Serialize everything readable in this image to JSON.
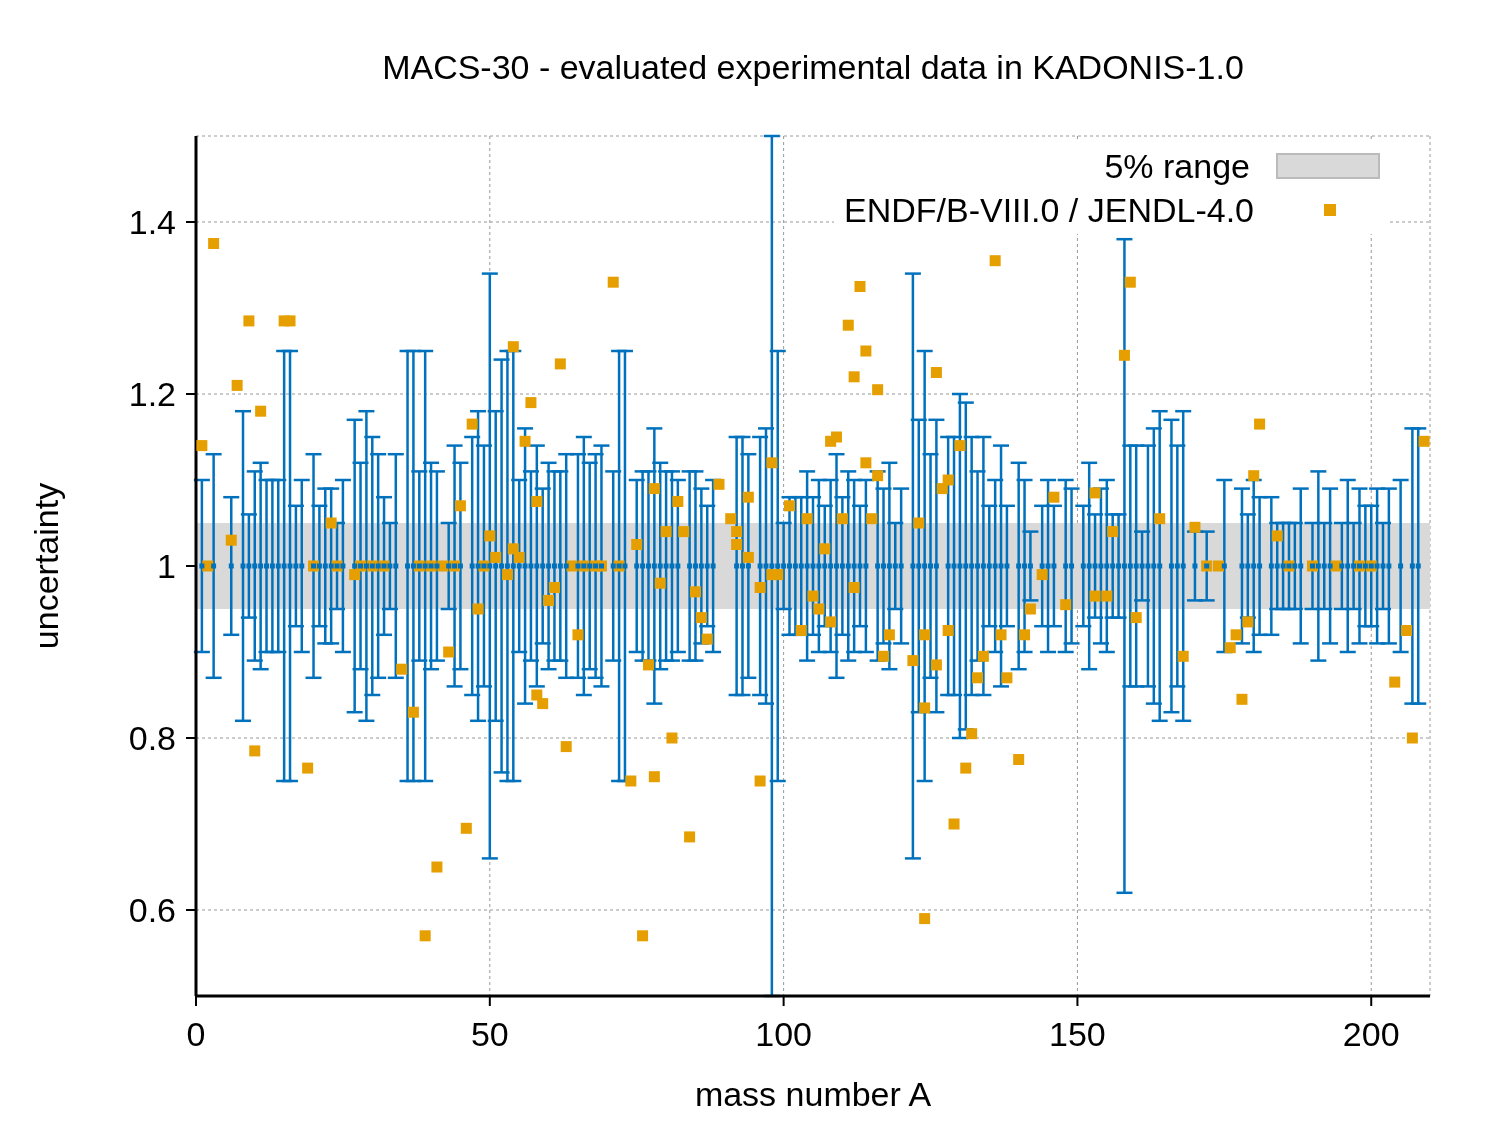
{
  "chart_data": {
    "type": "scatter",
    "title": "MACS-30 - evaluated experimental data in KADONIS-1.0",
    "xlabel": "mass number A",
    "ylabel": "uncertainty",
    "xlim": [
      0,
      210
    ],
    "xticks": [
      0,
      50,
      100,
      150,
      200
    ],
    "ylim": [
      0.5,
      1.5
    ],
    "yticks": [
      0.6,
      0.8,
      1,
      1.2,
      1.4
    ],
    "grid": true,
    "legend": "top right",
    "marker": "square",
    "bands": [
      {
        "axis": "y",
        "from": 0.95,
        "to": 1.05,
        "label": "5% range",
        "color": "#d9d9d9"
      }
    ],
    "series": [
      {
        "color": "#0072bd",
        "x": [
          1,
          3,
          6,
          8,
          9,
          10,
          11,
          12,
          13,
          14,
          15,
          16,
          17,
          18,
          20,
          21,
          22,
          23,
          24,
          25,
          27,
          28,
          29,
          30,
          31,
          32,
          33,
          34,
          36,
          37,
          38,
          39,
          40,
          41,
          43,
          44,
          45,
          47,
          48,
          49,
          50,
          51,
          52,
          53,
          54,
          55,
          56,
          57,
          58,
          59,
          60,
          61,
          62,
          63,
          65,
          66,
          67,
          68,
          69,
          71,
          72,
          73,
          75,
          76,
          77,
          78,
          79,
          80,
          81,
          82,
          84,
          85,
          86,
          87,
          88,
          92,
          93,
          94,
          96,
          97,
          98,
          99,
          100,
          101,
          102,
          103,
          104,
          105,
          106,
          107,
          108,
          109,
          110,
          111,
          112,
          113,
          114,
          116,
          117,
          118,
          119,
          120,
          122,
          123,
          124,
          125,
          126,
          128,
          129,
          130,
          131,
          132,
          133,
          134,
          135,
          136,
          137,
          138,
          140,
          141,
          142,
          144,
          145,
          146,
          148,
          149,
          151,
          152,
          153,
          154,
          155,
          156,
          157,
          158,
          159,
          160,
          161,
          162,
          163,
          164,
          166,
          167,
          168,
          170,
          172,
          175,
          178,
          179,
          180,
          181,
          183,
          184,
          185,
          186,
          187,
          188,
          190,
          191,
          192,
          193,
          195,
          196,
          197,
          198,
          199,
          200,
          201,
          202,
          203,
          205,
          207,
          208
        ],
        "values": [
          1,
          1,
          1,
          1,
          1,
          1,
          1,
          1,
          1,
          1,
          1,
          1,
          1,
          1,
          1,
          1,
          1,
          1,
          1,
          1,
          1,
          1,
          1,
          1,
          1,
          1,
          1,
          1,
          1,
          1,
          1,
          1,
          1,
          1,
          1,
          1,
          1,
          1,
          1,
          1,
          1,
          1,
          1,
          1,
          1,
          1,
          1,
          1,
          1,
          1,
          1,
          1,
          1,
          1,
          1,
          1,
          1,
          1,
          1,
          1,
          1,
          1,
          1,
          1,
          1,
          1,
          1,
          1,
          1,
          1,
          1,
          1,
          1,
          1,
          1,
          1,
          1,
          1,
          1,
          1,
          1,
          1,
          1,
          1,
          1,
          1,
          1,
          1,
          1,
          1,
          1,
          1,
          1,
          1,
          1,
          1,
          1,
          1,
          1,
          1,
          1,
          1,
          1,
          1,
          1,
          1,
          1,
          1,
          1,
          1,
          1,
          1,
          1,
          1,
          1,
          1,
          1,
          1,
          1,
          1,
          1,
          1,
          1,
          1,
          1,
          1,
          1,
          1,
          1,
          1,
          1,
          1,
          1,
          1,
          1,
          1,
          1,
          1,
          1,
          1,
          1,
          1,
          1,
          1,
          1,
          1,
          1,
          1,
          1,
          1,
          1,
          1,
          1,
          1,
          1,
          1,
          1,
          1,
          1,
          1,
          1,
          1,
          1,
          1,
          1,
          1,
          1,
          1,
          1,
          1,
          1,
          1
        ],
        "errors": [
          0.1,
          0.13,
          0.08,
          0.18,
          0.06,
          0.11,
          0.12,
          0.1,
          0.1,
          0.1,
          0.25,
          0.25,
          0.07,
          0.1,
          0.13,
          0.07,
          0.09,
          0.09,
          0.05,
          0.1,
          0.17,
          0.12,
          0.18,
          0.15,
          0.13,
          0.08,
          0.05,
          0.13,
          0.25,
          0.25,
          0.11,
          0.25,
          0.12,
          0.11,
          0.05,
          0.14,
          0.12,
          0.15,
          0.18,
          0.14,
          0.34,
          0.18,
          0.24,
          0.25,
          0.25,
          0.1,
          0.16,
          0.11,
          0.14,
          0.09,
          0.12,
          0.11,
          0.11,
          0.13,
          0.13,
          0.15,
          0.12,
          0.13,
          0.14,
          0.11,
          0.25,
          0.25,
          0.1,
          0.11,
          0.11,
          0.16,
          0.12,
          0.11,
          0.11,
          0.1,
          0.11,
          0.11,
          0.09,
          0.07,
          0.1,
          0.15,
          0.15,
          0.13,
          0.15,
          0.16,
          0.5,
          0.25,
          0.05,
          0.08,
          0.08,
          0.08,
          0.11,
          0.08,
          0.1,
          0.07,
          0.1,
          0.13,
          0.08,
          0.11,
          0.1,
          0.07,
          0.1,
          0.11,
          0.09,
          0.12,
          0.05,
          0.09,
          0.34,
          0.17,
          0.25,
          0.13,
          0.17,
          0.15,
          0.15,
          0.2,
          0.19,
          0.15,
          0.11,
          0.15,
          0.07,
          0.1,
          0.14,
          0.07,
          0.12,
          0.1,
          0.04,
          0.07,
          0.1,
          0.07,
          0.1,
          0.09,
          0.07,
          0.12,
          0.06,
          0.09,
          0.1,
          0.06,
          0.06,
          0.38,
          0.14,
          0.14,
          0.04,
          0.14,
          0.16,
          0.18,
          0.17,
          0.14,
          0.18,
          0.04,
          0.04,
          0.1,
          0.09,
          0.06,
          0.1,
          0.08,
          0.08,
          0.05,
          0.05,
          0.05,
          0.05,
          0.09,
          0.05,
          0.11,
          0.05,
          0.09,
          0.05,
          0.1,
          0.05,
          0.09,
          0.07,
          0.07,
          0.09,
          0.05,
          0.09,
          0.1,
          0.16,
          0.16
        ]
      },
      {
        "name": "ENDF/B-VIII.0 / JENDL-4.0",
        "color": "#e69f00",
        "x": [
          1,
          2,
          3,
          6,
          7,
          9,
          10,
          11,
          15,
          16,
          19,
          20,
          23,
          24,
          27,
          28,
          30,
          32,
          35,
          37,
          38,
          39,
          40,
          41,
          42,
          43,
          44,
          45,
          46,
          47,
          48,
          49,
          50,
          51,
          53,
          54,
          54,
          55,
          56,
          57,
          58,
          58,
          59,
          60,
          61,
          62,
          63,
          64,
          65,
          66,
          68,
          69,
          71,
          72,
          74,
          75,
          76,
          77,
          78,
          78,
          79,
          80,
          81,
          82,
          83,
          84,
          85,
          86,
          87,
          89,
          91,
          92,
          92,
          94,
          94,
          96,
          96,
          98,
          98,
          99,
          101,
          103,
          104,
          105,
          106,
          107,
          108,
          108,
          109,
          110,
          111,
          112,
          112,
          113,
          114,
          114,
          115,
          116,
          116,
          117,
          118,
          122,
          123,
          124,
          124,
          124,
          126,
          126,
          127,
          128,
          128,
          129,
          130,
          131,
          132,
          133,
          134,
          136,
          137,
          138,
          140,
          141,
          142,
          144,
          146,
          148,
          153,
          153,
          155,
          156,
          158,
          159,
          160,
          164,
          168,
          170,
          172,
          174,
          176,
          177,
          178,
          179,
          180,
          181,
          184,
          186,
          190,
          194,
          198,
          200,
          204,
          206,
          207,
          209
        ],
        "values": [
          1.14,
          1.0,
          1.375,
          1.03,
          1.21,
          1.285,
          0.785,
          1.18,
          1.285,
          1.285,
          0.765,
          1.0,
          1.05,
          1.0,
          0.99,
          1.0,
          1.0,
          1.0,
          0.88,
          0.83,
          1.0,
          0.57,
          1.0,
          0.65,
          1.0,
          0.9,
          1.0,
          1.07,
          0.695,
          1.165,
          0.95,
          1.0,
          1.035,
          1.01,
          0.99,
          1.255,
          1.02,
          1.01,
          1.145,
          1.19,
          1.075,
          0.85,
          0.84,
          0.96,
          0.975,
          1.235,
          0.79,
          1.0,
          0.92,
          1.0,
          1.0,
          1.0,
          1.33,
          1.0,
          0.75,
          1.025,
          0.57,
          0.885,
          1.09,
          0.755,
          0.98,
          1.04,
          0.8,
          1.075,
          1.04,
          0.685,
          0.97,
          0.94,
          0.915,
          1.095,
          1.055,
          1.04,
          1.025,
          1.01,
          1.08,
          0.75,
          0.975,
          1.12,
          0.99,
          0.99,
          1.07,
          0.925,
          1.055,
          0.965,
          0.95,
          1.02,
          0.935,
          1.145,
          1.15,
          1.055,
          1.28,
          1.22,
          0.975,
          1.325,
          1.25,
          1.12,
          1.055,
          1.105,
          1.205,
          0.895,
          0.92,
          0.89,
          1.05,
          0.835,
          0.59,
          0.92,
          1.225,
          0.885,
          1.09,
          1.1,
          0.925,
          0.7,
          1.14,
          0.765,
          0.805,
          0.87,
          0.895,
          1.355,
          0.92,
          0.87,
          0.775,
          0.92,
          0.95,
          0.99,
          1.08,
          0.955,
          1.085,
          0.965,
          0.965,
          1.04,
          1.245,
          1.33,
          0.94,
          1.055,
          0.895,
          1.045,
          1.0,
          1.0,
          0.905,
          0.92,
          0.845,
          0.935,
          1.105,
          1.165,
          1.035,
          1.0,
          1.0,
          1.0,
          1.0,
          1.0,
          0.865,
          0.925,
          0.8,
          1.145
        ]
      }
    ]
  }
}
